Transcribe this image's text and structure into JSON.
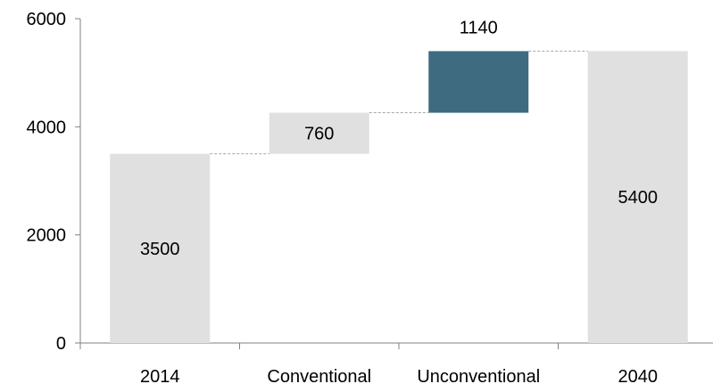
{
  "chart_data": {
    "type": "bar",
    "subtype": "waterfall",
    "title": "",
    "xlabel": "",
    "ylabel": "",
    "ylim": [
      0,
      6000
    ],
    "yticks": [
      0,
      2000,
      4000,
      6000
    ],
    "grid": false,
    "legend": "none",
    "categories": [
      "2014",
      "Conventional",
      "Unconventional",
      "2040"
    ],
    "bars": [
      {
        "category": "2014",
        "base": 0,
        "value": 3500,
        "label": "3500",
        "kind": "total"
      },
      {
        "category": "Conventional",
        "base": 3500,
        "value": 760,
        "label": "760",
        "kind": "increase"
      },
      {
        "category": "Unconventional",
        "base": 4260,
        "value": 1140,
        "label": "1140",
        "kind": "increase-highlight"
      },
      {
        "category": "2040",
        "base": 0,
        "value": 5400,
        "label": "5400",
        "kind": "total"
      }
    ],
    "colors": {
      "total": "#e0e0e0",
      "increase": "#e0e0e0",
      "increase-highlight": "#3e6b80",
      "connector": "#a6a6a6",
      "axis": "#808080"
    }
  }
}
